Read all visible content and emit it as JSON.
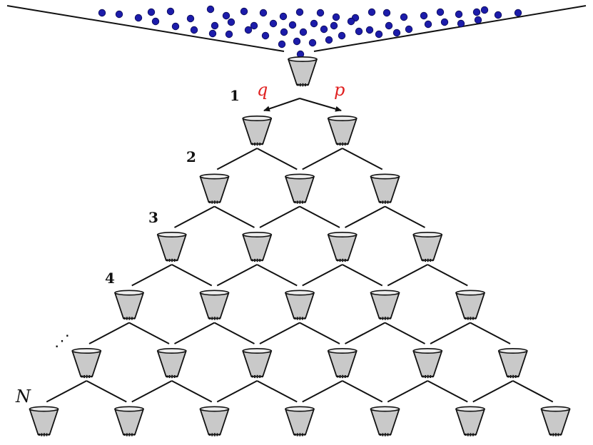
{
  "colors": {
    "ball": "#1c1caa",
    "ball_stroke": "#0a0a55",
    "cup_fill": "#c9c9c9",
    "cup_stroke": "#111111",
    "line": "#111111",
    "prob_text": "#e02020"
  },
  "icons": {
    "cup": "cup-icon",
    "ball": "ball-icon"
  },
  "labels": {
    "q": "q",
    "p": "p",
    "rows": [
      "1",
      "2",
      "3",
      "4",
      "⋰",
      "N"
    ]
  }
}
